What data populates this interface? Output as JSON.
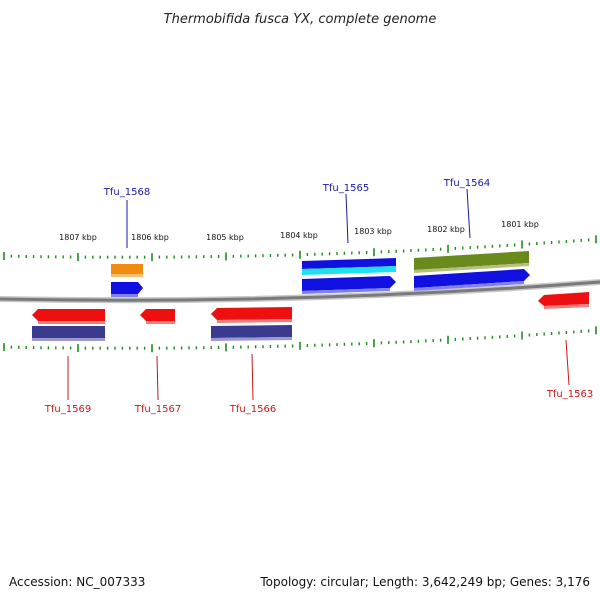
{
  "title": "Thermobifida fusca YX, complete genome",
  "footer": {
    "accession": "Accession: NC_007333",
    "topology": "Topology: circular; Length: 3,642,249 bp; Genes: 3,176"
  },
  "colors": {
    "backbone": "#7a7a7a",
    "tick": "#1e8a1e",
    "forward_gene": "#1010e0",
    "reverse_gene": "#ee1010",
    "feature_orange": "#f08c10",
    "feature_cyan": "#20e0f0",
    "feature_olive": "#6b8a1e",
    "feature_navy": "#3a3a8e",
    "label_forward": "#1a1aa8",
    "label_reverse": "#c81818"
  },
  "scale_labels": [
    "1807 kbp",
    "1806 kbp",
    "1805 kbp",
    "1804 kbp",
    "1803 kbp",
    "1802 kbp",
    "1801 kbp"
  ],
  "gene_labels": {
    "forward": [
      "Tfu_1568",
      "Tfu_1565",
      "Tfu_1564"
    ],
    "reverse": [
      "Tfu_1569",
      "Tfu_1567",
      "Tfu_1566",
      "Tfu_1563"
    ]
  }
}
